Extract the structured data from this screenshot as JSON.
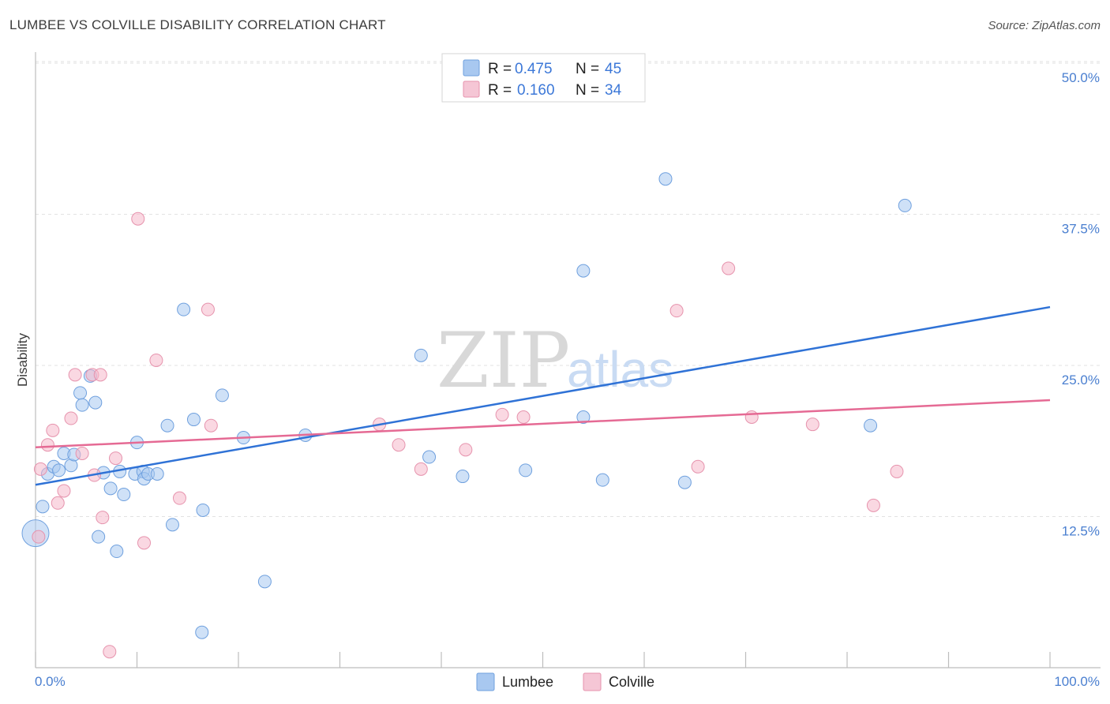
{
  "header": {
    "title": "LUMBEE VS COLVILLE DISABILITY CORRELATION CHART",
    "source": "Source: ZipAtlas.com"
  },
  "watermark": {
    "zip": "ZIP",
    "atlas": "atlas"
  },
  "legend": {
    "items": [
      {
        "r_label": "R =",
        "r_value": "0.475",
        "n_label": "N =",
        "n_value": "45",
        "color": "#a8c8f0"
      },
      {
        "r_label": "R =",
        "r_value": "0.160",
        "n_label": "N =",
        "n_value": "34",
        "color": "#f5b8cb"
      }
    ]
  },
  "bottom_legend": [
    {
      "label": "Lumbee",
      "color": "#a8c8f0"
    },
    {
      "label": "Colville",
      "color": "#f5b8cb"
    }
  ],
  "chart_data": {
    "type": "scatter",
    "ylabel": "Disability",
    "xlim": [
      0,
      100
    ],
    "ylim": [
      0,
      50
    ],
    "x_tick_labels": [
      "0.0%",
      "100.0%"
    ],
    "y_ticks": [
      {
        "value": 12.5,
        "label": "12.5%"
      },
      {
        "value": 25.0,
        "label": "25.0%"
      },
      {
        "value": 37.5,
        "label": "37.5%"
      },
      {
        "value": 50.0,
        "label": "50.0%"
      }
    ],
    "grid": true,
    "series": [
      {
        "name": "Lumbee",
        "color": "#a8c8f0",
        "stroke": "#6fa0de",
        "trend": {
          "color": "#2f72d6",
          "x": [
            0,
            100
          ],
          "y": [
            16.3,
            31.0
          ]
        },
        "points": [
          [
            0.0,
            12.3
          ],
          [
            0.7,
            14.5
          ],
          [
            1.2,
            17.2
          ],
          [
            1.8,
            17.8
          ],
          [
            2.3,
            17.5
          ],
          [
            2.8,
            18.9
          ],
          [
            3.5,
            17.9
          ],
          [
            3.8,
            18.8
          ],
          [
            4.4,
            23.9
          ],
          [
            4.6,
            22.9
          ],
          [
            5.4,
            25.3
          ],
          [
            5.9,
            23.1
          ],
          [
            6.2,
            12.0
          ],
          [
            6.7,
            17.3
          ],
          [
            7.4,
            16.0
          ],
          [
            8.0,
            10.8
          ],
          [
            8.3,
            17.4
          ],
          [
            8.7,
            15.5
          ],
          [
            9.8,
            17.2
          ],
          [
            10.0,
            19.8
          ],
          [
            10.6,
            17.4
          ],
          [
            10.7,
            16.8
          ],
          [
            11.1,
            17.2
          ],
          [
            12.0,
            17.2
          ],
          [
            13.0,
            21.2
          ],
          [
            13.5,
            13.0
          ],
          [
            14.6,
            30.8
          ],
          [
            15.6,
            21.7
          ],
          [
            16.5,
            14.2
          ],
          [
            16.4,
            4.1
          ],
          [
            18.4,
            23.7
          ],
          [
            20.5,
            20.2
          ],
          [
            22.6,
            8.3
          ],
          [
            26.6,
            20.4
          ],
          [
            38.0,
            27.0
          ],
          [
            38.8,
            18.6
          ],
          [
            42.1,
            17.0
          ],
          [
            48.3,
            17.5
          ],
          [
            54.0,
            21.9
          ],
          [
            54.0,
            34.0
          ],
          [
            55.9,
            16.7
          ],
          [
            62.1,
            41.6
          ],
          [
            64.0,
            16.5
          ],
          [
            82.3,
            21.2
          ],
          [
            85.7,
            39.4
          ]
        ]
      },
      {
        "name": "Colville",
        "color": "#f5b8cb",
        "stroke": "#e693ad",
        "trend": {
          "color": "#e56a94",
          "x": [
            0,
            100
          ],
          "y": [
            19.4,
            23.3
          ]
        },
        "points": [
          [
            0.3,
            12.0
          ],
          [
            0.5,
            17.6
          ],
          [
            1.2,
            19.6
          ],
          [
            1.7,
            20.8
          ],
          [
            2.2,
            14.8
          ],
          [
            2.8,
            15.8
          ],
          [
            3.5,
            21.8
          ],
          [
            3.9,
            25.4
          ],
          [
            4.6,
            18.9
          ],
          [
            5.6,
            25.4
          ],
          [
            5.8,
            17.1
          ],
          [
            6.4,
            25.4
          ],
          [
            6.6,
            13.6
          ],
          [
            7.3,
            2.5
          ],
          [
            7.9,
            18.5
          ],
          [
            10.1,
            38.3
          ],
          [
            10.7,
            11.5
          ],
          [
            11.9,
            26.6
          ],
          [
            14.2,
            15.2
          ],
          [
            17.0,
            30.8
          ],
          [
            17.3,
            21.2
          ],
          [
            33.9,
            21.3
          ],
          [
            35.8,
            19.6
          ],
          [
            38.0,
            17.6
          ],
          [
            42.4,
            19.2
          ],
          [
            46.0,
            22.1
          ],
          [
            48.1,
            21.9
          ],
          [
            63.2,
            30.7
          ],
          [
            65.3,
            17.8
          ],
          [
            68.3,
            34.2
          ],
          [
            70.6,
            21.9
          ],
          [
            76.6,
            21.3
          ],
          [
            82.6,
            14.6
          ],
          [
            84.9,
            17.4
          ]
        ]
      }
    ]
  }
}
